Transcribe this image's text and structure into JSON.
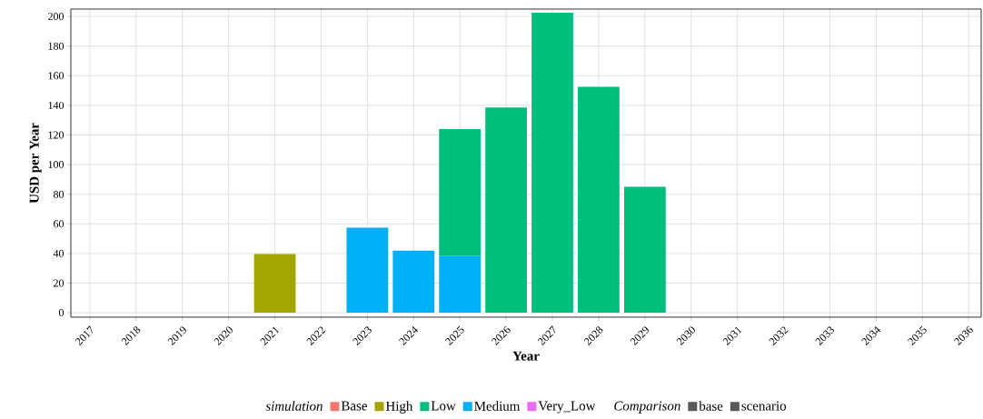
{
  "chart_data": {
    "type": "bar",
    "stacked": true,
    "xlabel": "Year",
    "ylabel": "USD per Year",
    "legend_title": "simulation",
    "annotations": [
      "Comparison"
    ],
    "categories": [
      "2017",
      "2018",
      "2019",
      "2020",
      "2021",
      "2022",
      "2023",
      "2024",
      "2025",
      "2026",
      "2027",
      "2028",
      "2029",
      "2030",
      "2031",
      "2032",
      "2033",
      "2034",
      "2035",
      "2036"
    ],
    "ylim": [
      -3,
      205
    ],
    "yticks": [
      0,
      20,
      40,
      60,
      80,
      100,
      120,
      140,
      160,
      180,
      200
    ],
    "grid": true,
    "legend": "bottom",
    "series": [
      {
        "name": "scenario",
        "color": "#595959",
        "values": [
          null,
          null,
          null,
          null,
          null,
          null,
          null,
          null,
          null,
          null,
          null,
          null,
          null,
          null,
          null,
          null,
          null,
          null,
          null,
          null
        ]
      },
      {
        "name": "base",
        "color": "#595959",
        "values": [
          null,
          null,
          null,
          null,
          null,
          null,
          null,
          null,
          null,
          null,
          null,
          null,
          null,
          null,
          null,
          null,
          null,
          null,
          null,
          null
        ]
      },
      {
        "name": "Very_Low",
        "color": "#e76bf3",
        "values": [
          null,
          null,
          null,
          null,
          null,
          null,
          null,
          null,
          null,
          null,
          null,
          null,
          null,
          null,
          null,
          null,
          null,
          null,
          null,
          null
        ]
      },
      {
        "name": "Medium",
        "color": "#00b0f6",
        "values": [
          null,
          null,
          null,
          null,
          null,
          null,
          57.5,
          42,
          38.5,
          null,
          null,
          null,
          null,
          null,
          null,
          null,
          null,
          null,
          null,
          null
        ]
      },
      {
        "name": "Low",
        "color": "#00bf7d",
        "values": [
          null,
          null,
          null,
          null,
          null,
          null,
          null,
          null,
          85.5,
          138.5,
          202.5,
          152.5,
          85,
          null,
          null,
          null,
          null,
          null,
          null,
          null
        ]
      },
      {
        "name": "High",
        "color": "#a3a500",
        "values": [
          null,
          null,
          null,
          null,
          39.6,
          null,
          null,
          null,
          null,
          null,
          null,
          null,
          null,
          null,
          null,
          null,
          null,
          null,
          null,
          null
        ]
      },
      {
        "name": "Base",
        "color": "#f8766d",
        "values": [
          null,
          null,
          null,
          null,
          null,
          null,
          null,
          null,
          null,
          null,
          null,
          null,
          null,
          null,
          null,
          null,
          null,
          null,
          null,
          null
        ]
      }
    ]
  }
}
